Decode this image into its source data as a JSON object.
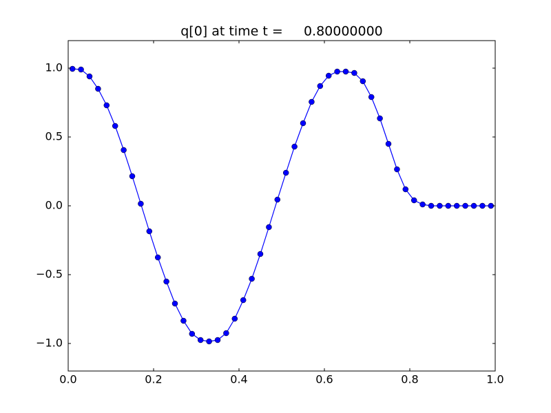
{
  "chart_data": {
    "type": "line",
    "title": "q[0] at time t =     0.80000000",
    "x": [
      0.01,
      0.03,
      0.05,
      0.07,
      0.09,
      0.11,
      0.13,
      0.15,
      0.17,
      0.19,
      0.21,
      0.23,
      0.25,
      0.27,
      0.29,
      0.31,
      0.33,
      0.35,
      0.37,
      0.39,
      0.41,
      0.43,
      0.45,
      0.47,
      0.49,
      0.51,
      0.53,
      0.55,
      0.57,
      0.59,
      0.61,
      0.63,
      0.65,
      0.67,
      0.69,
      0.71,
      0.73,
      0.75,
      0.77,
      0.79,
      0.81,
      0.83,
      0.85,
      0.87,
      0.89,
      0.91,
      0.93,
      0.95,
      0.97,
      0.99
    ],
    "series": [
      {
        "color": "#0000ff",
        "values": [
          0.995,
          0.99,
          0.94,
          0.85,
          0.73,
          0.58,
          0.405,
          0.215,
          0.015,
          -0.185,
          -0.375,
          -0.55,
          -0.71,
          -0.835,
          -0.93,
          -0.975,
          -0.985,
          -0.975,
          -0.925,
          -0.82,
          -0.685,
          -0.53,
          -0.35,
          -0.155,
          0.045,
          0.24,
          0.43,
          0.6,
          0.755,
          0.87,
          0.945,
          0.975,
          0.975,
          0.965,
          0.905,
          0.79,
          0.635,
          0.45,
          0.265,
          0.12,
          0.04,
          0.01,
          0,
          0,
          0,
          0,
          0,
          0,
          0,
          0
        ]
      }
    ],
    "xlim": [
      0,
      1
    ],
    "ylim": [
      -1.2,
      1.2
    ],
    "xticks": [
      {
        "value": 0,
        "label": "0.0"
      },
      {
        "value": 0.2,
        "label": "0.2"
      },
      {
        "value": 0.4,
        "label": "0.4"
      },
      {
        "value": 0.6,
        "label": "0.6"
      },
      {
        "value": 0.8,
        "label": "0.8"
      },
      {
        "value": 1,
        "label": "1.0"
      }
    ],
    "yticks": [
      {
        "value": -1,
        "label": "−1.0"
      },
      {
        "value": -0.5,
        "label": "−0.5"
      },
      {
        "value": 0,
        "label": "0.0"
      },
      {
        "value": 0.5,
        "label": "0.5"
      },
      {
        "value": 1,
        "label": "1.0"
      }
    ],
    "grid": false
  }
}
